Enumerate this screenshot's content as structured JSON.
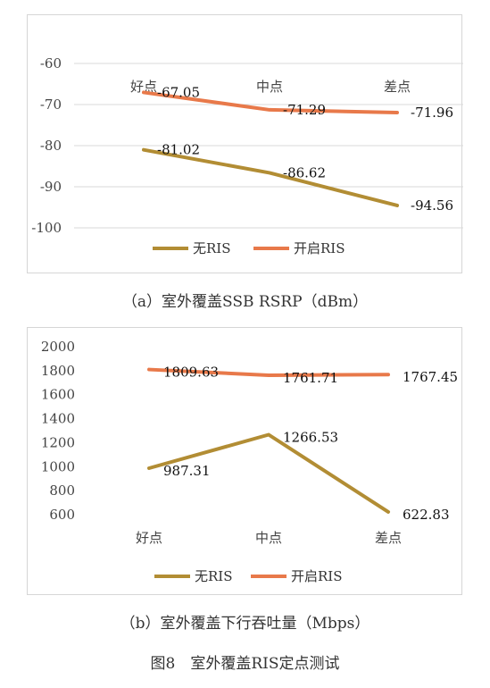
{
  "chart_data": [
    {
      "type": "line",
      "categories": [
        "好点",
        "中点",
        "差点"
      ],
      "series": [
        {
          "name": "无RIS",
          "values": [
            -81.02,
            -86.62,
            -94.56
          ],
          "color": "#b28d34",
          "labels": [
            "-81.02",
            "-86.62",
            "-94.56"
          ]
        },
        {
          "name": "开启RIS",
          "values": [
            -67.05,
            -71.29,
            -71.96
          ],
          "color": "#e8794a",
          "labels": [
            "-67.05",
            "-71.29",
            "-71.96"
          ]
        }
      ],
      "yticks": [
        "-60",
        "-70",
        "-80",
        "-90",
        "-100"
      ],
      "ylim": [
        -100,
        -60
      ],
      "x_axis_position": "top",
      "grid": true,
      "legend": "bottom",
      "caption": "（a）室外覆盖SSB RSRP（dBm）"
    },
    {
      "type": "line",
      "categories": [
        "好点",
        "中点",
        "差点"
      ],
      "series": [
        {
          "name": "无RIS",
          "values": [
            987.31,
            1266.53,
            622.83
          ],
          "color": "#b28d34",
          "labels": [
            "987.31",
            "1266.53",
            "622.83"
          ]
        },
        {
          "name": "开启RIS",
          "values": [
            1809.63,
            1761.71,
            1767.45
          ],
          "color": "#e8794a",
          "labels": [
            "1809.63",
            "1761.71",
            "1767.45"
          ]
        }
      ],
      "yticks": [
        "2000",
        "1800",
        "1600",
        "1400",
        "1200",
        "1000",
        "800",
        "600"
      ],
      "ylim": [
        600,
        2000
      ],
      "x_axis_position": "bottom",
      "grid": false,
      "legend": "bottom",
      "caption": "（b）室外覆盖下行吞吐量（Mbps）"
    }
  ],
  "figure_caption": "图8　室外覆盖RIS定点测试"
}
